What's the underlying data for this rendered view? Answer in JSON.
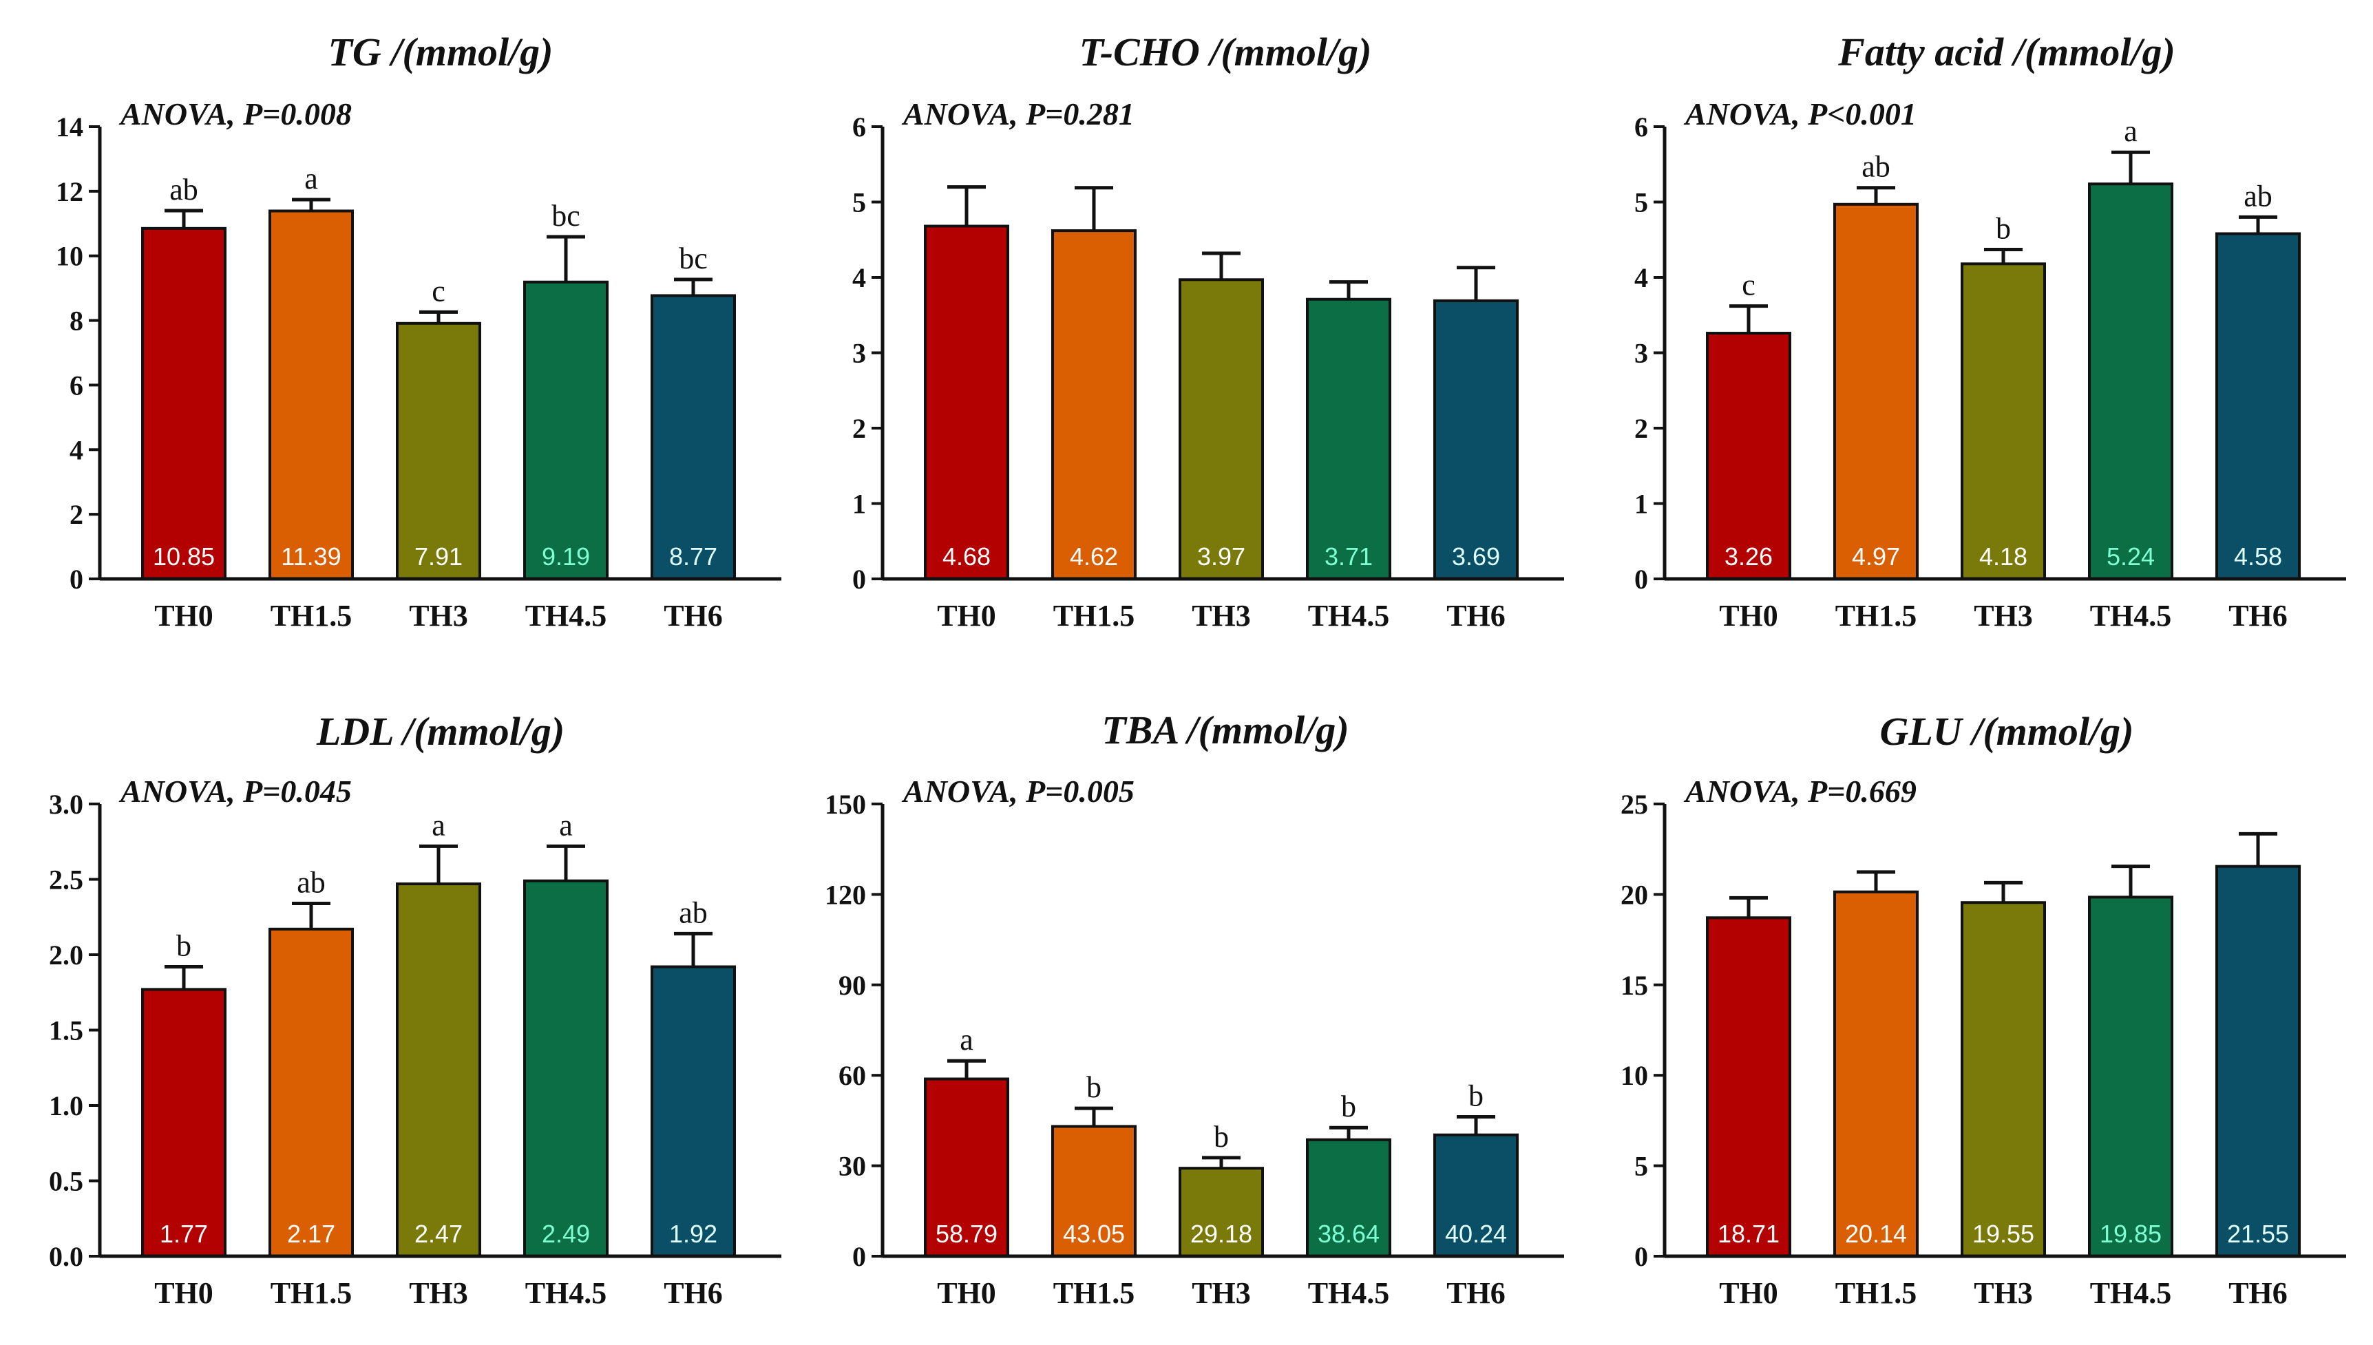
{
  "categories": [
    "TH0",
    "TH1.5",
    "TH3",
    "TH4.5",
    "TH6"
  ],
  "colors": [
    "#b30000",
    "#d95f02",
    "#7a7a0a",
    "#0b6e45",
    "#0b4f66"
  ],
  "value_label_colors": [
    "#ffffff",
    "#ffffff",
    "#ffffff",
    "#7fffd4",
    "#e0ffff"
  ],
  "chart_data": [
    {
      "type": "bar",
      "title": "TG /(mmol/g)",
      "anova": "ANOVA, P=0.008",
      "categories": [
        "TH0",
        "TH1.5",
        "TH3",
        "TH4.5",
        "TH6"
      ],
      "values": [
        10.85,
        11.39,
        7.91,
        9.19,
        8.77
      ],
      "value_labels": [
        "10.85",
        "11.39",
        "7.91",
        "9.19",
        "8.77"
      ],
      "errors": [
        0.55,
        0.35,
        0.35,
        1.4,
        0.5
      ],
      "significance": [
        "ab",
        "a",
        "c",
        "bc",
        "bc"
      ],
      "ylim": [
        0,
        14
      ],
      "yticks": [
        "0",
        "2",
        "4",
        "6",
        "8",
        "10",
        "12",
        "14"
      ],
      "ytick_values": [
        0,
        2,
        4,
        6,
        8,
        10,
        12,
        14
      ]
    },
    {
      "type": "bar",
      "title": "T-CHO /(mmol/g)",
      "anova": "ANOVA, P=0.281",
      "categories": [
        "TH0",
        "TH1.5",
        "TH3",
        "TH4.5",
        "TH6"
      ],
      "values": [
        4.68,
        4.62,
        3.97,
        3.71,
        3.69
      ],
      "value_labels": [
        "4.68",
        "4.62",
        "3.97",
        "3.71",
        "3.69"
      ],
      "errors": [
        0.52,
        0.57,
        0.35,
        0.23,
        0.44
      ],
      "significance": [
        "",
        "",
        "",
        "",
        ""
      ],
      "ylim": [
        0,
        6
      ],
      "yticks": [
        "0",
        "1",
        "2",
        "3",
        "4",
        "5",
        "6"
      ],
      "ytick_values": [
        0,
        1,
        2,
        3,
        4,
        5,
        6
      ]
    },
    {
      "type": "bar",
      "title": "Fatty acid /(mmol/g)",
      "anova": "ANOVA, P<0.001",
      "categories": [
        "TH0",
        "TH1.5",
        "TH3",
        "TH4.5",
        "TH6"
      ],
      "values": [
        3.26,
        4.97,
        4.18,
        5.24,
        4.58
      ],
      "value_labels": [
        "3.26",
        "4.97",
        "4.18",
        "5.24",
        "4.58"
      ],
      "errors": [
        0.36,
        0.22,
        0.19,
        0.42,
        0.22
      ],
      "significance": [
        "c",
        "ab",
        "b",
        "a",
        "ab"
      ],
      "ylim": [
        0,
        6
      ],
      "yticks": [
        "0",
        "1",
        "2",
        "3",
        "4",
        "5",
        "6"
      ],
      "ytick_values": [
        0,
        1,
        2,
        3,
        4,
        5,
        6
      ]
    },
    {
      "type": "bar",
      "title": "LDL /(mmol/g)",
      "anova": "ANOVA, P=0.045",
      "categories": [
        "TH0",
        "TH1.5",
        "TH3",
        "TH4.5",
        "TH6"
      ],
      "values": [
        1.77,
        2.17,
        2.47,
        2.49,
        1.92
      ],
      "value_labels": [
        "1.77",
        "2.17",
        "2.47",
        "2.49",
        "1.92"
      ],
      "errors": [
        0.15,
        0.17,
        0.25,
        0.23,
        0.22
      ],
      "significance": [
        "b",
        "ab",
        "a",
        "a",
        "ab"
      ],
      "ylim": [
        0,
        3
      ],
      "yticks": [
        "0.0",
        "0.5",
        "1.0",
        "1.5",
        "2.0",
        "2.5",
        "3.0"
      ],
      "ytick_values": [
        0,
        0.5,
        1,
        1.5,
        2,
        2.5,
        3
      ]
    },
    {
      "type": "bar",
      "title": "TBA /(mmol/g)",
      "anova": "ANOVA, P=0.005",
      "categories": [
        "TH0",
        "TH1.5",
        "TH3",
        "TH4.5",
        "TH6"
      ],
      "values": [
        58.79,
        43.05,
        29.18,
        38.64,
        40.24
      ],
      "value_labels": [
        "58.79",
        "43.05",
        "29.18",
        "38.64",
        "40.24"
      ],
      "errors": [
        6,
        6,
        3.5,
        4,
        6
      ],
      "significance": [
        "a",
        "b",
        "b",
        "b",
        "b"
      ],
      "ylim": [
        0,
        150
      ],
      "yticks": [
        "0",
        "30",
        "60",
        "90",
        "120",
        "150"
      ],
      "ytick_values": [
        0,
        30,
        60,
        90,
        120,
        150
      ]
    },
    {
      "type": "bar",
      "title": "GLU /(mmol/g)",
      "anova": "ANOVA, P=0.669",
      "categories": [
        "TH0",
        "TH1.5",
        "TH3",
        "TH4.5",
        "TH6"
      ],
      "values": [
        18.71,
        20.14,
        19.55,
        19.85,
        21.55
      ],
      "value_labels": [
        "18.71",
        "20.14",
        "19.55",
        "19.85",
        "21.55"
      ],
      "errors": [
        1.1,
        1.1,
        1.1,
        1.7,
        1.8
      ],
      "significance": [
        "",
        "",
        "",
        "",
        ""
      ],
      "ylim": [
        0,
        25
      ],
      "yticks": [
        "0",
        "5",
        "10",
        "15",
        "20",
        "25"
      ],
      "ytick_values": [
        0,
        5,
        10,
        15,
        20,
        25
      ]
    }
  ]
}
